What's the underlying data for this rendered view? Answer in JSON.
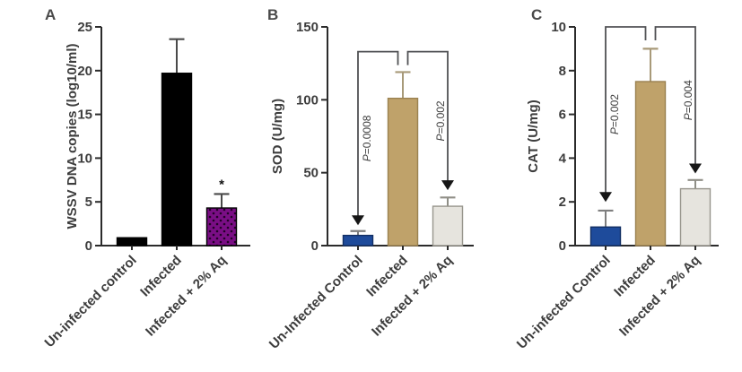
{
  "figure": {
    "background": "#ffffff",
    "text_color": "#3d3d3d",
    "axis_color": "#2b2b2b",
    "bracket_color": "#505154",
    "arrow_color": "#161616",
    "description_labels": [
      "A",
      "B",
      "C"
    ]
  },
  "chart_data": [
    {
      "type": "bar",
      "panel_label": "A",
      "title": "",
      "xlabel": "",
      "ylabel": "WSSV DNA copies (log10/ml)",
      "ylim": [
        0,
        25
      ],
      "yticks": [
        0,
        5,
        10,
        15,
        20,
        25
      ],
      "grid": false,
      "legend": "none",
      "categories": [
        "Un-infected control",
        "Infected",
        "Infected + 2% Aq"
      ],
      "series": [
        {
          "category": "Un-infected control",
          "value": 0.9,
          "error_top": null,
          "fill": "#000000",
          "stroke": "#000000",
          "error_color": "#4a4a4a",
          "pattern": null,
          "annotation": null
        },
        {
          "category": "Infected",
          "value": 19.7,
          "error_top": 23.6,
          "fill": "#000000",
          "stroke": "#000000",
          "error_color": "#4a4a4a",
          "pattern": null,
          "annotation": null
        },
        {
          "category": "Infected + 2% Aq",
          "value": 4.3,
          "error_top": 5.9,
          "fill": "#7a0e85",
          "stroke": "#000000",
          "error_color": "#4a4a4a",
          "pattern": "dots",
          "pattern_dot_color": "#230128",
          "annotation": "*"
        }
      ],
      "comparisons": []
    },
    {
      "type": "bar",
      "panel_label": "B",
      "title": "",
      "xlabel": "",
      "ylabel": "SOD (U/mg)",
      "ylim": [
        0,
        150
      ],
      "yticks": [
        0,
        50,
        100,
        150
      ],
      "grid": false,
      "legend": "none",
      "categories": [
        "Un-Infected Control",
        "Infected",
        "Infected + 2% Aq"
      ],
      "series": [
        {
          "category": "Un-Infected Control",
          "value": 7,
          "error_top": 10,
          "fill": "#1e4b9b",
          "stroke": "#122f63",
          "error_color": "#7f7f7f",
          "pattern": null,
          "annotation": null
        },
        {
          "category": "Infected",
          "value": 101,
          "error_top": 119,
          "fill": "#bfa26a",
          "stroke": "#9a8150",
          "error_color": "#a89a79",
          "pattern": null,
          "annotation": null
        },
        {
          "category": "Infected + 2% Aq",
          "value": 27,
          "error_top": 33,
          "fill": "#e6e4de",
          "stroke": "#97958c",
          "error_color": "#8f8e86",
          "pattern": null,
          "annotation": null
        }
      ],
      "comparisons": [
        {
          "label": "P=0.0008",
          "from_bar": 1,
          "to_bar": 0,
          "bracket_value": 133,
          "arrow_tip_value": 14,
          "label_side": "right"
        },
        {
          "label": "P=0.002",
          "from_bar": 1,
          "to_bar": 2,
          "bracket_value": 133,
          "arrow_tip_value": 38,
          "label_side": "left"
        }
      ]
    },
    {
      "type": "bar",
      "panel_label": "C",
      "title": "",
      "xlabel": "",
      "ylabel": "CAT (U/mg)",
      "ylim": [
        0,
        10
      ],
      "yticks": [
        0,
        2,
        4,
        6,
        8,
        10
      ],
      "grid": false,
      "legend": "none",
      "categories": [
        "Un-infected Control",
        "Infected",
        "Infected + 2% Aq"
      ],
      "series": [
        {
          "category": "Un-infected Control",
          "value": 0.85,
          "error_top": 1.6,
          "fill": "#1e4b9b",
          "stroke": "#122f63",
          "error_color": "#7f7f7f",
          "pattern": null,
          "annotation": null
        },
        {
          "category": "Infected",
          "value": 7.5,
          "error_top": 9.0,
          "fill": "#bfa26a",
          "stroke": "#9a8150",
          "error_color": "#a89a79",
          "pattern": null,
          "annotation": null
        },
        {
          "category": "Infected + 2% Aq",
          "value": 2.6,
          "error_top": 3.0,
          "fill": "#e6e4de",
          "stroke": "#97958c",
          "error_color": "#8f8e86",
          "pattern": null,
          "annotation": null
        }
      ],
      "comparisons": [
        {
          "label": "P=0.002",
          "from_bar": 1,
          "to_bar": 0,
          "bracket_value": 10,
          "arrow_tip_value": 2.0,
          "label_side": "right"
        },
        {
          "label": "P=0.004",
          "from_bar": 1,
          "to_bar": 2,
          "bracket_value": 10,
          "arrow_tip_value": 3.3,
          "label_side": "left"
        }
      ]
    }
  ]
}
